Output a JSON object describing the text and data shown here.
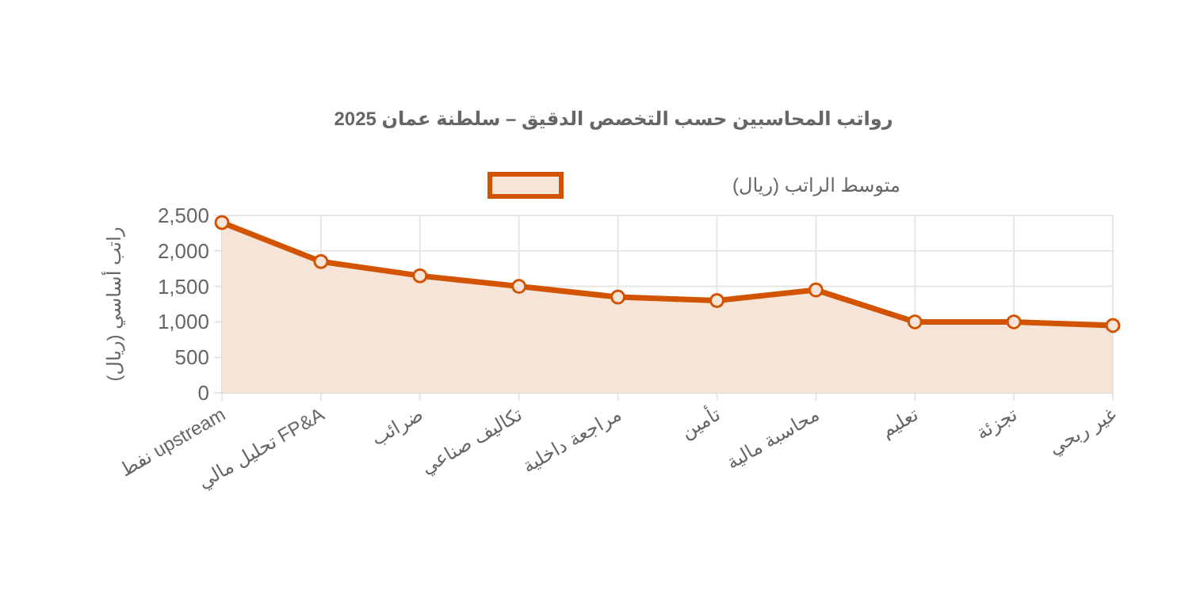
{
  "chart_data": {
    "type": "area",
    "title": "رواتب المحاسبين حسب التخصص الدقيق – سلطنة عمان 2025",
    "ylabel": "راتب أساسي (ريال)",
    "categories": [
      "نفط upstream",
      "تحليل مالي FP&A",
      "ضرائب",
      "تكاليف صناعي",
      "مراجعة داخلية",
      "تأمين",
      "محاسبة مالية",
      "تعليم",
      "تجزئة",
      "غير ربحي"
    ],
    "series": [
      {
        "name": "متوسط الراتب (ريال)",
        "color": "#d35400",
        "values": [
          2400,
          1850,
          1650,
          1500,
          1350,
          1300,
          1450,
          1000,
          1000,
          950
        ]
      }
    ],
    "ylim": [
      0,
      2500
    ],
    "yticks": [
      0,
      {
        "value": 500,
        "label": "500"
      },
      {
        "value": 1000,
        "label": "1,000"
      },
      {
        "value": 1500,
        "label": "1,500"
      },
      {
        "value": 2000,
        "label": "2,000"
      },
      {
        "value": 2500,
        "label": "2,500"
      }
    ],
    "grid": true,
    "legend": "top",
    "marker": "circle",
    "line_style": "solid"
  }
}
